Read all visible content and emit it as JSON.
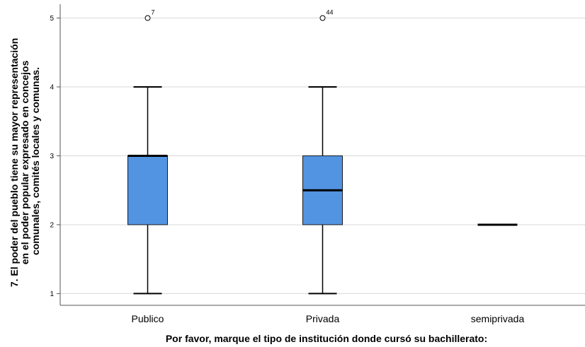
{
  "chart_data": {
    "type": "boxplot",
    "xlabel": "Por favor, marque el tipo de institución donde cursó su bachillerato:",
    "ylabel_lines": [
      "7. El poder del pueblo tiene su mayor representación",
      "en el poder popular expresado en concejos",
      "comunales, comités locales y comunas."
    ],
    "ylim": [
      0.83,
      5.2
    ],
    "yticks": [
      1,
      2,
      3,
      4,
      5
    ],
    "grid": "horizontal",
    "colors": {
      "box_fill": "#5294e2",
      "box_stroke": "#1a1a1a",
      "grid": "#d9d9d9",
      "axis": "#555555"
    },
    "categories": [
      "Publico",
      "Privada",
      "semiprivada"
    ],
    "boxes": [
      {
        "category": "Publico",
        "whisker_low": 1,
        "q1": 2,
        "median": 3,
        "q3": 3,
        "whisker_high": 4,
        "outliers": [
          {
            "value": 5,
            "label": "7"
          }
        ]
      },
      {
        "category": "Privada",
        "whisker_low": 1,
        "q1": 2,
        "median": 2.5,
        "q3": 3,
        "whisker_high": 4,
        "outliers": [
          {
            "value": 5,
            "label": "44"
          }
        ]
      },
      {
        "category": "semiprivada",
        "whisker_low": 2,
        "q1": 2,
        "median": 2,
        "q3": 2,
        "whisker_high": 2,
        "outliers": []
      }
    ]
  }
}
